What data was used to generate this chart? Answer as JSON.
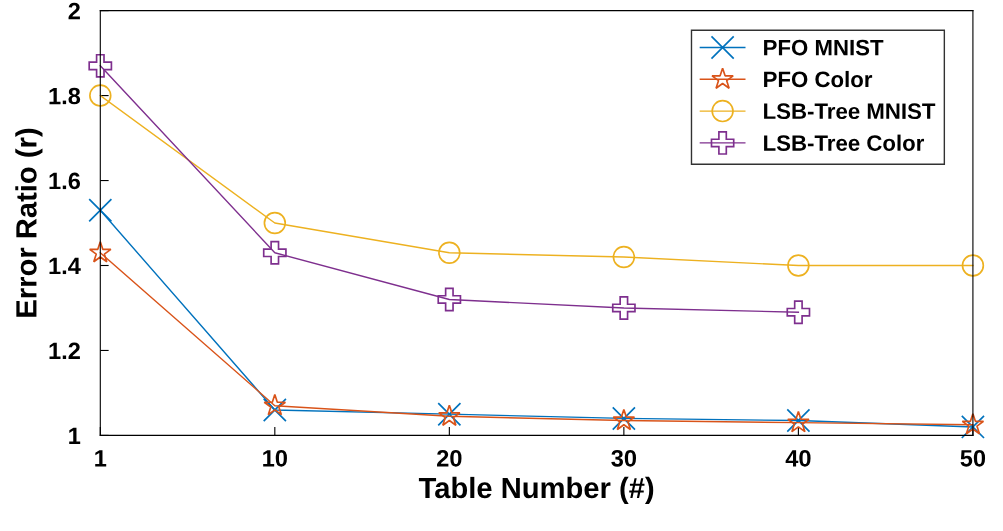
{
  "chart_data": {
    "type": "line",
    "xlabel": "Table Number (#)",
    "ylabel": "Error Ratio (r)",
    "categories": [
      "1",
      "10",
      "20",
      "30",
      "40",
      "50"
    ],
    "series": [
      {
        "name": "PFO MNIST",
        "color": "#0072bd",
        "marker": "x",
        "values": [
          1.53,
          1.06,
          1.05,
          1.04,
          1.035,
          1.02
        ]
      },
      {
        "name": "PFO Color",
        "color": "#d95319",
        "marker": "star",
        "values": [
          1.43,
          1.07,
          1.045,
          1.035,
          1.03,
          1.025
        ]
      },
      {
        "name": "LSB-Tree MNIST",
        "color": "#edb120",
        "marker": "circle",
        "values": [
          1.8,
          1.5,
          1.43,
          1.42,
          1.4,
          1.4
        ]
      },
      {
        "name": "LSB-Tree Color",
        "color": "#7e2f8e",
        "marker": "cross",
        "values": [
          1.87,
          1.43,
          1.32,
          1.3,
          1.29,
          null
        ]
      }
    ],
    "ylim": [
      1,
      2
    ],
    "yticks": [
      1,
      1.2,
      1.4,
      1.6,
      1.8,
      2
    ],
    "grid": false,
    "legend": "top right",
    "line_style": "solid"
  }
}
